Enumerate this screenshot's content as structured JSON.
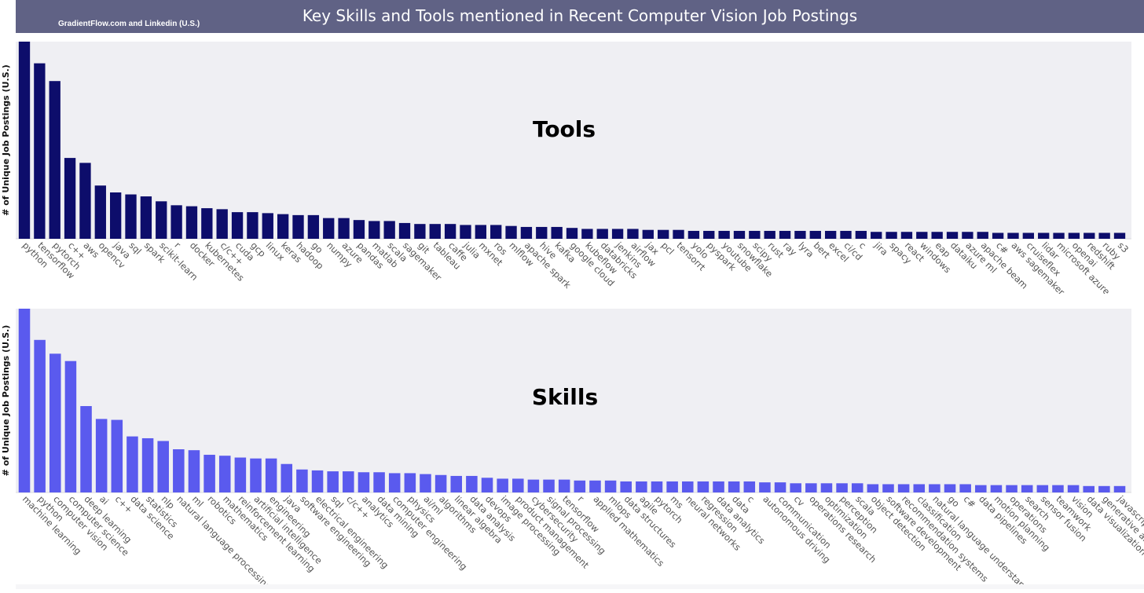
{
  "header": {
    "title": "Key Skills and Tools mentioned in Recent Computer Vision Job Postings",
    "source": "GradientFlow.com and Linkedin (U.S.)",
    "background_color": "#606285"
  },
  "colors": {
    "tools_bar": "#0d0d6b",
    "skills_bar": "#5a5aee",
    "plot_background": "#efeff3",
    "tick_label": "#555555"
  },
  "chart_data": [
    {
      "type": "bar",
      "title": "Tools",
      "ylabel": "# of Unique Job Postings (U.S.)",
      "xlabel": "",
      "ylim": [
        0,
        100
      ],
      "grid": false,
      "categories": [
        "python",
        "tensorflow",
        "pytorch",
        "c++",
        "aws",
        "opencv",
        "java",
        "sql",
        "spark",
        "scikit-learn",
        "r",
        "docker",
        "kubernetes",
        "c/c++",
        "cuda",
        "gcp",
        "linux",
        "keras",
        "hadoop",
        "go",
        "numpy",
        "azure",
        "pandas",
        "matlab",
        "scala",
        "sagemaker",
        "git",
        "tableau",
        "caffe",
        "julia",
        "mxnet",
        "ros",
        "mlflow",
        "apache spark",
        "hive",
        "kafka",
        "google cloud",
        "kubeflow",
        "databricks",
        "jenkins",
        "airflow",
        "jax",
        "pcl",
        "tensorrt",
        "yolo",
        "pyspark",
        "youtube",
        "snowflake",
        "scipy",
        "rust",
        "ray",
        "lyra",
        "bert",
        "excel",
        "ci/cd",
        "c",
        "jira",
        "spacy",
        "react",
        "windows",
        "eap",
        "dataiku",
        "azure ml",
        "apache beam",
        "c#",
        "aws sagemaker",
        "cruiseflex",
        "lidar",
        "microsoft azure",
        "openai",
        "redshift",
        "ruby",
        "s3"
      ],
      "values": [
        100,
        89,
        80,
        41,
        38.5,
        27,
        23.5,
        22.5,
        21.5,
        19,
        17,
        16.5,
        15.5,
        15,
        13.5,
        13.5,
        13,
        12.5,
        12,
        12,
        10.5,
        10.5,
        9.5,
        9,
        9,
        8,
        7.5,
        7.5,
        7.5,
        7,
        7,
        7,
        6.5,
        6,
        6,
        6,
        5.5,
        5,
        5,
        5,
        5,
        4.5,
        4.5,
        4.5,
        4,
        4,
        4,
        4,
        4,
        4,
        4,
        4,
        4,
        4,
        4,
        4,
        3.5,
        3.5,
        3.5,
        3.5,
        3.5,
        3.5,
        3.5,
        3.5,
        3,
        3,
        3,
        3,
        3,
        3,
        3,
        3,
        3
      ]
    },
    {
      "type": "bar",
      "title": "Skills",
      "ylabel": "# of Unique Job Postings (U.S.)",
      "xlabel": "",
      "ylim": [
        0,
        100
      ],
      "grid": false,
      "categories": [
        "machine learning",
        "python",
        "computer vision",
        "computer science",
        "deep learning",
        "ai",
        "c++",
        "data science",
        "statistics",
        "nlp",
        "natural language processing",
        "ml",
        "robotics",
        "mathematics",
        "reinforcement learning",
        "artificial intelligence",
        "engineering",
        "java",
        "software engineering",
        "electrical engineering",
        "sql",
        "c/c++",
        "analytics",
        "data mining",
        "computer engineering",
        "physics",
        "ai/ml",
        "algorithms",
        "linear algebra",
        "data analysis",
        "devops",
        "image processing",
        "product management",
        "cybersecurity",
        "signal processing",
        "tensorflow",
        "r",
        "applied mathematics",
        "mlops",
        "data structures",
        "agile",
        "pytorch",
        "ms",
        "neural networks",
        "regression",
        "data analytics",
        "data",
        "c",
        "autonomous driving",
        "communication",
        "cv",
        "operations research",
        "optimization",
        "perception",
        "scala",
        "object detection",
        "software development",
        "recommendation systems",
        "classification",
        "natural language understanding",
        "go",
        "c#",
        "data pipelines",
        "motion planning",
        "operations",
        "search",
        "sensor fusion",
        "teamwork",
        "vision",
        "data visualization",
        "generative ai",
        "javascript"
      ],
      "values": [
        100,
        83,
        75.5,
        71.5,
        47,
        40,
        39.5,
        30.5,
        29.5,
        28,
        23.5,
        23,
        20.5,
        20,
        19,
        18.5,
        18.5,
        15.5,
        12.5,
        12,
        11.5,
        11.5,
        11,
        11,
        10.5,
        10.5,
        10,
        9.5,
        9,
        9,
        8,
        7.5,
        7.5,
        7,
        7,
        7,
        6.5,
        6.5,
        6.5,
        6,
        6,
        6,
        6,
        6,
        6,
        6,
        6,
        6,
        5.5,
        5.5,
        5,
        5,
        5,
        5,
        5,
        4.5,
        4.5,
        4.5,
        4.5,
        4.5,
        4.5,
        4.5,
        4,
        4,
        4,
        4,
        4,
        4,
        4,
        3.5,
        3.5,
        3.5
      ]
    }
  ]
}
